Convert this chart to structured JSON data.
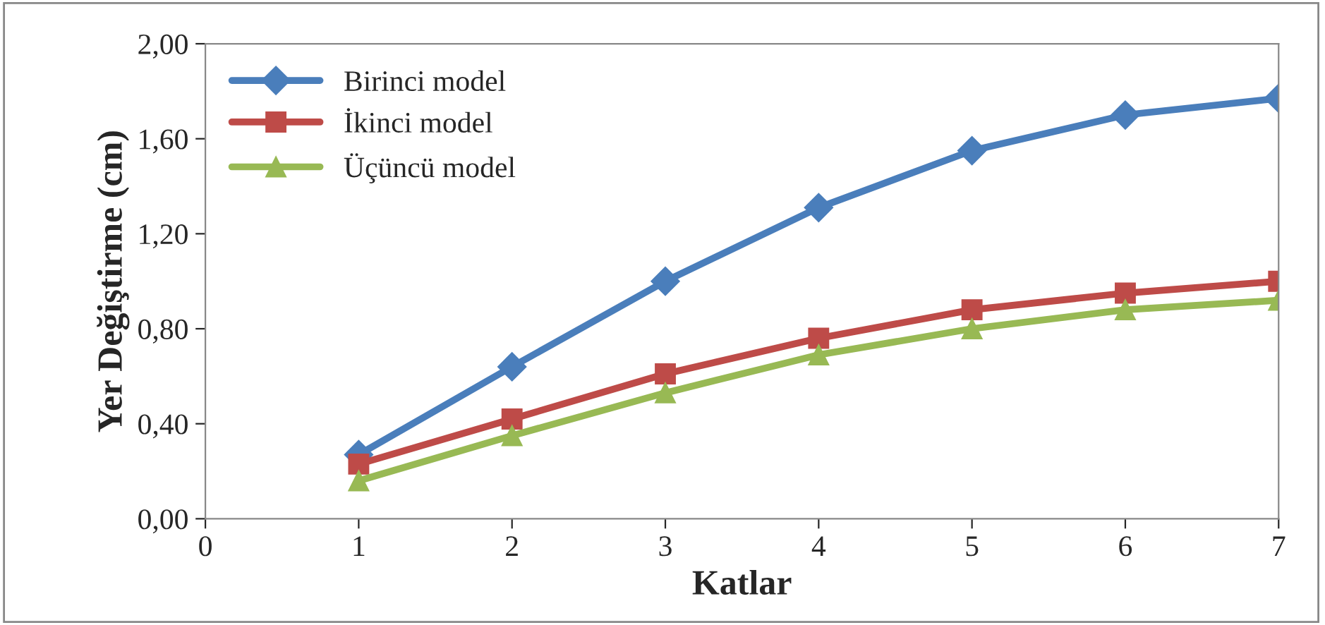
{
  "chart_data": {
    "type": "line",
    "xlabel": "Katlar",
    "ylabel": "Yer Değiştirme (cm)",
    "x": [
      1,
      2,
      3,
      4,
      5,
      6,
      7
    ],
    "series": [
      {
        "name": "Birinci model",
        "color": "#4a7ebb",
        "marker": "diamond",
        "values": [
          0.27,
          0.64,
          1.0,
          1.31,
          1.55,
          1.7,
          1.77
        ]
      },
      {
        "name": "İkinci model",
        "color": "#be4b48",
        "marker": "square",
        "values": [
          0.23,
          0.42,
          0.61,
          0.76,
          0.88,
          0.95,
          1.0
        ]
      },
      {
        "name": "Üçüncü model",
        "color": "#98b954",
        "marker": "triangle",
        "values": [
          0.16,
          0.35,
          0.53,
          0.69,
          0.8,
          0.88,
          0.92
        ]
      }
    ],
    "xlim": [
      0,
      7
    ],
    "xticks": [
      0,
      1,
      2,
      3,
      4,
      5,
      6,
      7
    ],
    "ylim": [
      0,
      2
    ],
    "yticks": [
      {
        "value": 0,
        "label": "0,00"
      },
      {
        "value": 0.4,
        "label": "0,40"
      },
      {
        "value": 0.8,
        "label": "0,80"
      },
      {
        "value": 1.2,
        "label": "1,20"
      },
      {
        "value": 1.6,
        "label": "1,60"
      },
      {
        "value": 2,
        "label": "2,00"
      }
    ],
    "grid": false,
    "legend": "top left",
    "line_style": "solid"
  }
}
